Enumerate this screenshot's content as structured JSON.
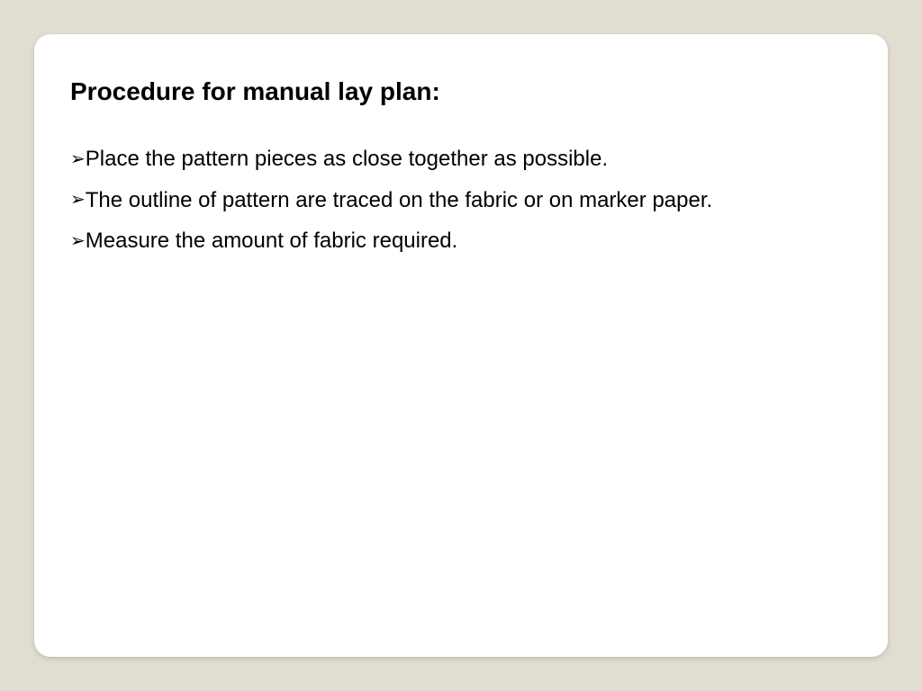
{
  "slide": {
    "title": "Procedure for manual lay plan:",
    "bullets": [
      "Place the pattern pieces as close together as possible.",
      "The outline of pattern are traced on the fabric or on marker paper.",
      "Measure the amount of fabric required."
    ],
    "bullet_marker": "➢"
  },
  "style": {
    "background_color": "#e1ddd0",
    "card_background": "#ffffff",
    "card_border_radius": 18,
    "title_fontsize": 28,
    "title_weight": "bold",
    "body_fontsize": 24,
    "line_height": 1.9,
    "text_color": "#000000",
    "font_family": "Verdana"
  }
}
